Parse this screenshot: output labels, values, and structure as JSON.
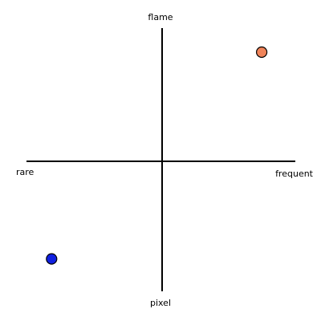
{
  "diagram": {
    "labels": {
      "top": "flame",
      "bottom": "pixel",
      "left": "rare",
      "right": "frequent"
    },
    "axis_color": "#000000",
    "points": [
      {
        "name": "orange-point",
        "x": 0.73,
        "y": 0.85,
        "color": "#f0845a"
      },
      {
        "name": "blue-point",
        "x": -0.81,
        "y": -0.76,
        "color": "#1020e0"
      }
    ]
  }
}
